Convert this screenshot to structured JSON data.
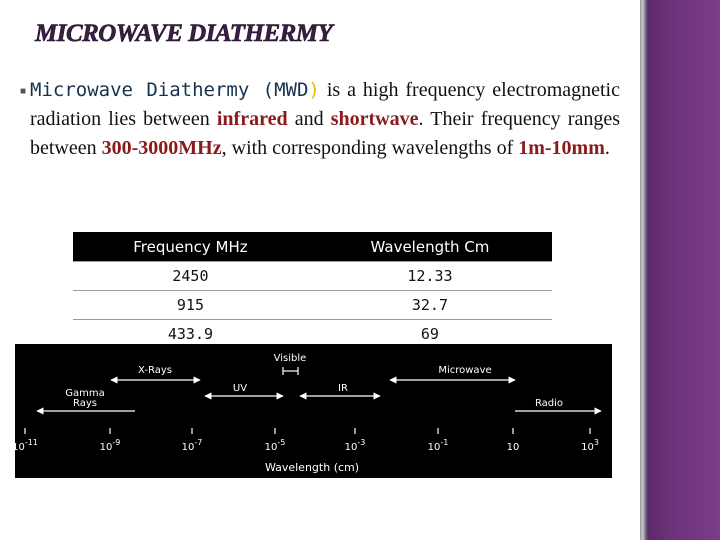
{
  "title": "MICROWAVE DIATHERMY",
  "paragraph": [
    "Microwave Diathermy (MWD",
    ")",
    " is a high frequency electromagnetic radiation lies between ",
    "infrared",
    " and ",
    "shortwave",
    ". Their frequency ranges between ",
    "300-3000MHz",
    ", with corresponding wavelengths of ",
    "1m-10mm",
    "."
  ],
  "table": {
    "header": [
      "Frequency MHz",
      "Wavelength Cm"
    ],
    "rows": [
      [
        "2450",
        "12.33"
      ],
      [
        "915",
        "32.7"
      ],
      [
        "433.9",
        "69"
      ]
    ]
  },
  "spectrum": {
    "bands": [
      "Visible",
      "X-Rays",
      "Microwave",
      "UV",
      "IR",
      "Gamma",
      "Rays",
      "Radio"
    ],
    "ticks": [
      {
        "base": "10",
        "exponent": "-11"
      },
      {
        "base": "10",
        "exponent": "-9"
      },
      {
        "base": "10",
        "exponent": "-7"
      },
      {
        "base": "10",
        "exponent": "-5"
      },
      {
        "base": "10",
        "exponent": "-3"
      },
      {
        "base": "10",
        "exponent": "-1"
      },
      {
        "base": "10"
      },
      {
        "base": "10",
        "exponent": "3"
      }
    ],
    "axis_label": "Wavelength (cm)"
  }
}
